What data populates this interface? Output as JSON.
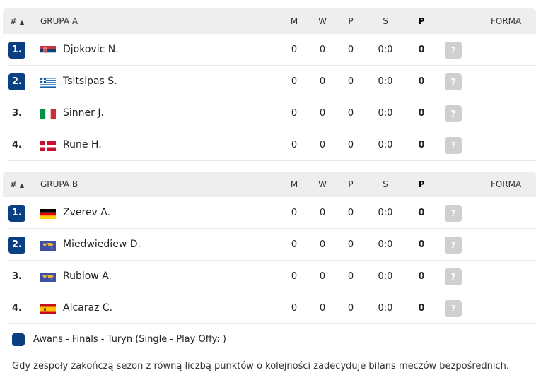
{
  "columns": {
    "rank": "#",
    "sort_icon": "triangle-up",
    "m": "M",
    "w": "W",
    "p": "P",
    "s": "S",
    "pts": "P",
    "form": "FORMA"
  },
  "groups": [
    {
      "title": "GRUPA A",
      "rows": [
        {
          "rank": "1.",
          "qualified": true,
          "flag": "serbia",
          "name": "Djokovic N.",
          "m": "0",
          "w": "0",
          "p": "0",
          "s": "0:0",
          "pts": "0",
          "form": "?"
        },
        {
          "rank": "2.",
          "qualified": true,
          "flag": "greece",
          "name": "Tsitsipas S.",
          "m": "0",
          "w": "0",
          "p": "0",
          "s": "0:0",
          "pts": "0",
          "form": "?"
        },
        {
          "rank": "3.",
          "qualified": false,
          "flag": "italy",
          "name": "Sinner J.",
          "m": "0",
          "w": "0",
          "p": "0",
          "s": "0:0",
          "pts": "0",
          "form": "?"
        },
        {
          "rank": "4.",
          "qualified": false,
          "flag": "denmark",
          "name": "Rune H.",
          "m": "0",
          "w": "0",
          "p": "0",
          "s": "0:0",
          "pts": "0",
          "form": "?"
        }
      ]
    },
    {
      "title": "GRUPA B",
      "rows": [
        {
          "rank": "1.",
          "qualified": true,
          "flag": "germany",
          "name": "Zverev A.",
          "m": "0",
          "w": "0",
          "p": "0",
          "s": "0:0",
          "pts": "0",
          "form": "?"
        },
        {
          "rank": "2.",
          "qualified": true,
          "flag": "world",
          "name": "Miedwiediew D.",
          "m": "0",
          "w": "0",
          "p": "0",
          "s": "0:0",
          "pts": "0",
          "form": "?"
        },
        {
          "rank": "3.",
          "qualified": false,
          "flag": "world",
          "name": "Rublow A.",
          "m": "0",
          "w": "0",
          "p": "0",
          "s": "0:0",
          "pts": "0",
          "form": "?"
        },
        {
          "rank": "4.",
          "qualified": false,
          "flag": "spain",
          "name": "Alcaraz C.",
          "m": "0",
          "w": "0",
          "p": "0",
          "s": "0:0",
          "pts": "0",
          "form": "?"
        }
      ]
    }
  ],
  "legend": {
    "label": "Awans - Finals - Turyn (Single - Play Offy: )",
    "color": "#0a3f82"
  },
  "note": "Gdy zespoły zakończą sezon z równą liczbą punktów o kolejności zadecyduje bilans meczów bezpośrednich."
}
